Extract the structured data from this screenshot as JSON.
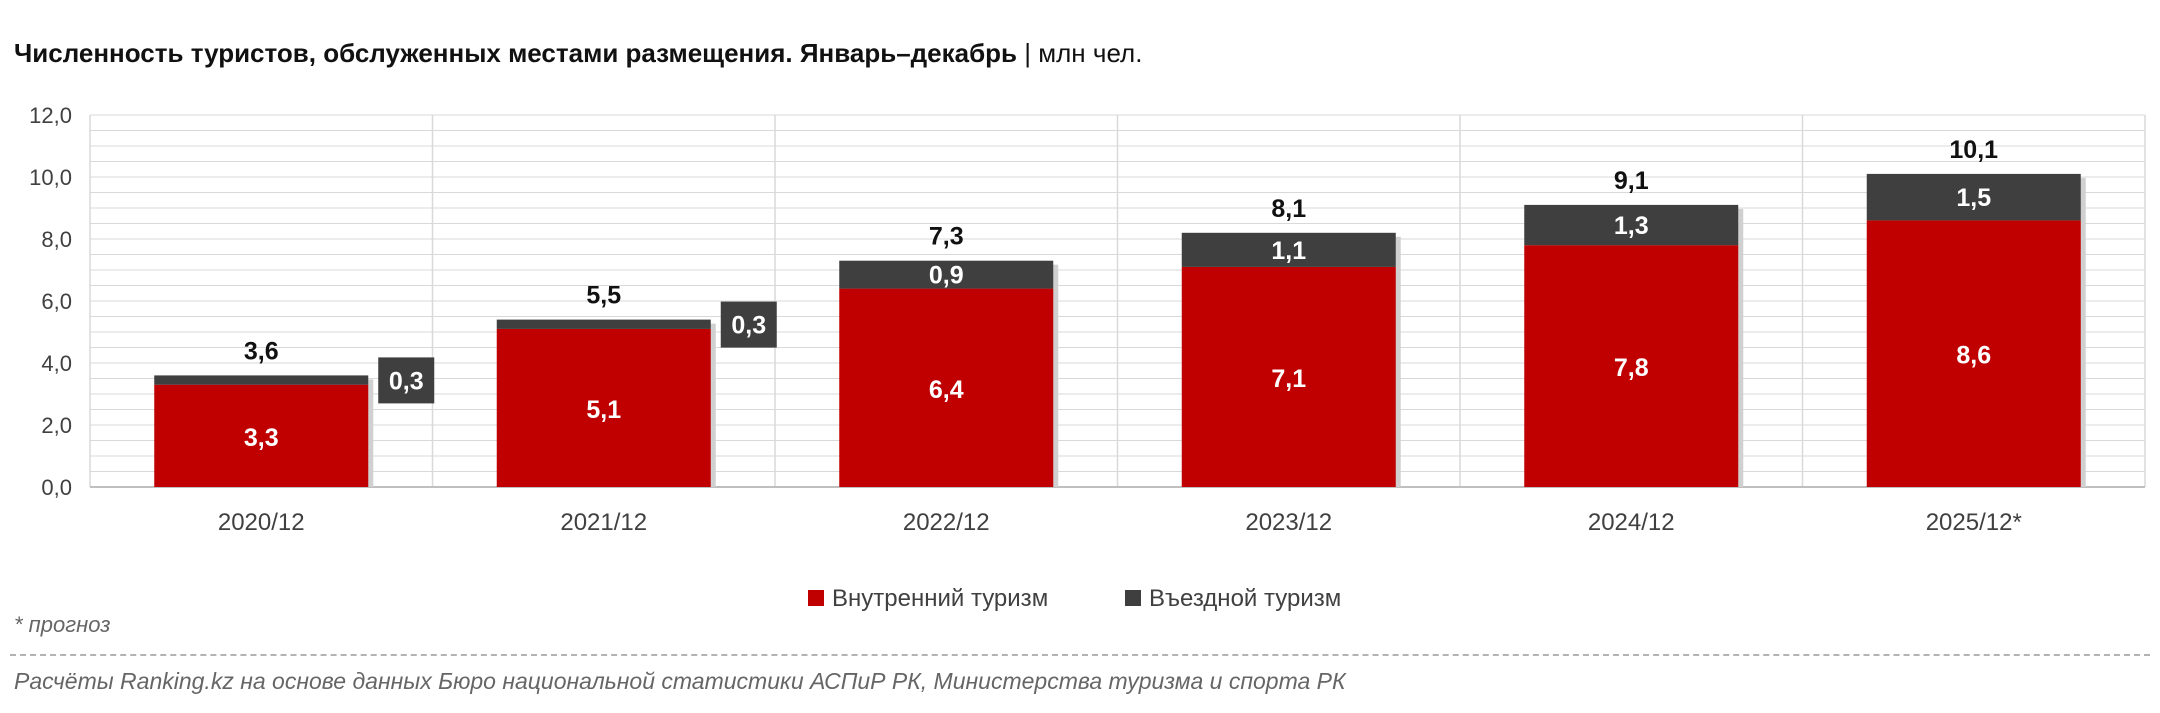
{
  "title": "Численность туристов, обслуженных местами размещения. Январь–декабрь",
  "title_separator": "|",
  "unit": "млн чел.",
  "forecast_note": "* прогноз",
  "source": "Расчёты Ranking.kz на основе данных Бюро национальной статистики АСПиР РК, Министерства туризма и спорта РК",
  "colors": {
    "domestic": "#c00000",
    "inbound": "#3f3f3f",
    "grid": "#d9d9d9",
    "axis_text": "#404040"
  },
  "chart_data": {
    "type": "bar",
    "stacked": true,
    "categories": [
      "2020/12",
      "2021/12",
      "2022/12",
      "2023/12",
      "2024/12",
      "2025/12*"
    ],
    "series": [
      {
        "name": "Внутренний туризм",
        "values": [
          3.3,
          5.1,
          6.4,
          7.1,
          7.8,
          8.6
        ],
        "labels": [
          "3,3",
          "5,1",
          "6,4",
          "7,1",
          "7,8",
          "8,6"
        ]
      },
      {
        "name": "Въездной туризм",
        "values": [
          0.3,
          0.3,
          0.9,
          1.1,
          1.3,
          1.5
        ],
        "labels": [
          "0,3",
          "0,3",
          "0,9",
          "1,1",
          "1,3",
          "1,5"
        ]
      }
    ],
    "totals": [
      3.6,
      5.5,
      7.3,
      8.1,
      9.1,
      10.1
    ],
    "total_labels": [
      "3,6",
      "5,5",
      "7,3",
      "8,1",
      "9,1",
      "10,1"
    ],
    "ylim": [
      0,
      12
    ],
    "yticks": [
      0,
      2,
      4,
      6,
      8,
      10,
      12
    ],
    "ytick_labels": [
      "0,0",
      "2,0",
      "4,0",
      "6,0",
      "8,0",
      "10,0",
      "12,0"
    ],
    "grid": true,
    "legend_position": "bottom"
  }
}
